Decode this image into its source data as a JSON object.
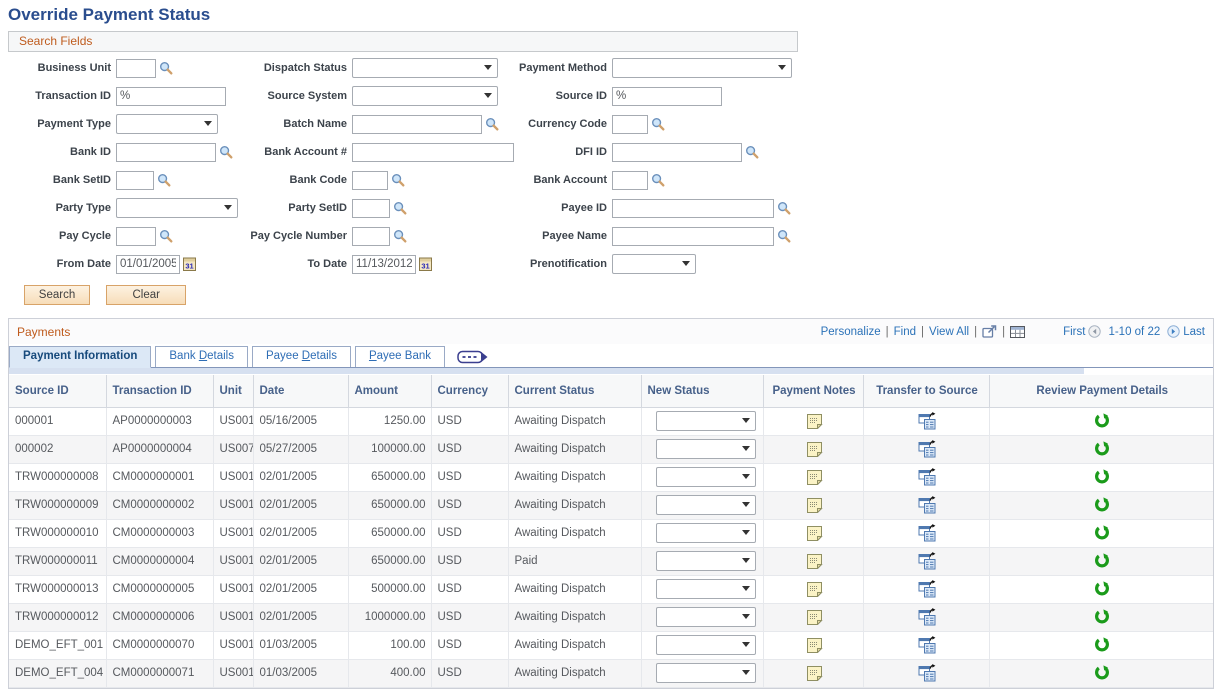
{
  "page": {
    "title": "Override Payment Status"
  },
  "search": {
    "header": "Search Fields",
    "fields": [
      {
        "label": "Business Unit",
        "value": ""
      },
      {
        "label": "Dispatch Status",
        "value": ""
      },
      {
        "label": "Payment Method",
        "value": ""
      },
      {
        "label": "Transaction ID",
        "value": "%"
      },
      {
        "label": "Source System",
        "value": ""
      },
      {
        "label": "Source ID",
        "value": "%"
      },
      {
        "label": "Payment Type",
        "value": ""
      },
      {
        "label": "Batch Name",
        "value": ""
      },
      {
        "label": "Currency Code",
        "value": ""
      },
      {
        "label": "Bank ID",
        "value": ""
      },
      {
        "label": "Bank Account #",
        "value": ""
      },
      {
        "label": "DFI ID",
        "value": ""
      },
      {
        "label": "Bank SetID",
        "value": ""
      },
      {
        "label": "Bank Code",
        "value": ""
      },
      {
        "label": "Bank Account",
        "value": ""
      },
      {
        "label": "Party Type",
        "value": ""
      },
      {
        "label": "Party SetID",
        "value": ""
      },
      {
        "label": "Payee ID",
        "value": ""
      },
      {
        "label": "Pay Cycle",
        "value": ""
      },
      {
        "label": "Pay Cycle Number",
        "value": ""
      },
      {
        "label": "Payee Name",
        "value": ""
      },
      {
        "label": "From Date",
        "value": "01/01/2005"
      },
      {
        "label": "To Date",
        "value": "11/13/2012"
      },
      {
        "label": "Prenotification",
        "value": ""
      }
    ],
    "buttons": {
      "search": "Search",
      "clear": "Clear"
    }
  },
  "payments": {
    "header": "Payments",
    "toolbar": {
      "personalize": "Personalize",
      "find": "Find",
      "view_all": "View All",
      "first": "First",
      "range": "1-10 of 22",
      "last": "Last"
    },
    "tabs": [
      {
        "label": "Payment Information",
        "active": true
      },
      {
        "label": "Bank Details",
        "accesskey": "D"
      },
      {
        "label": "Payee Details",
        "accesskey": "D"
      },
      {
        "label": "Payee Bank",
        "accesskey": "P"
      }
    ],
    "columns": [
      "Source ID",
      "Transaction ID",
      "Unit",
      "Date",
      "Amount",
      "Currency",
      "Current Status",
      "New Status",
      "Payment Notes",
      "Transfer to Source",
      "Review Payment Details"
    ],
    "rows": [
      {
        "source_id": "000001",
        "transaction_id": "AP0000000003",
        "unit": "US001",
        "date": "05/16/2005",
        "amount": "1250.00",
        "currency": "USD",
        "current_status": "Awaiting Dispatch"
      },
      {
        "source_id": "000002",
        "transaction_id": "AP0000000004",
        "unit": "US007",
        "date": "05/27/2005",
        "amount": "100000.00",
        "currency": "USD",
        "current_status": "Awaiting Dispatch"
      },
      {
        "source_id": "TRW000000008",
        "transaction_id": "CM0000000001",
        "unit": "US001",
        "date": "02/01/2005",
        "amount": "650000.00",
        "currency": "USD",
        "current_status": "Awaiting Dispatch"
      },
      {
        "source_id": "TRW000000009",
        "transaction_id": "CM0000000002",
        "unit": "US001",
        "date": "02/01/2005",
        "amount": "650000.00",
        "currency": "USD",
        "current_status": "Awaiting Dispatch"
      },
      {
        "source_id": "TRW000000010",
        "transaction_id": "CM0000000003",
        "unit": "US001",
        "date": "02/01/2005",
        "amount": "650000.00",
        "currency": "USD",
        "current_status": "Awaiting Dispatch"
      },
      {
        "source_id": "TRW000000011",
        "transaction_id": "CM0000000004",
        "unit": "US001",
        "date": "02/01/2005",
        "amount": "650000.00",
        "currency": "USD",
        "current_status": "Paid"
      },
      {
        "source_id": "TRW000000013",
        "transaction_id": "CM0000000005",
        "unit": "US001",
        "date": "02/01/2005",
        "amount": "500000.00",
        "currency": "USD",
        "current_status": "Awaiting Dispatch"
      },
      {
        "source_id": "TRW000000012",
        "transaction_id": "CM0000000006",
        "unit": "US001",
        "date": "02/01/2005",
        "amount": "1000000.00",
        "currency": "USD",
        "current_status": "Awaiting Dispatch"
      },
      {
        "source_id": "DEMO_EFT_001",
        "transaction_id": "CM0000000070",
        "unit": "US001",
        "date": "01/03/2005",
        "amount": "100.00",
        "currency": "USD",
        "current_status": "Awaiting Dispatch"
      },
      {
        "source_id": "DEMO_EFT_004",
        "transaction_id": "CM0000000071",
        "unit": "US001",
        "date": "01/03/2005",
        "amount": "400.00",
        "currency": "USD",
        "current_status": "Awaiting Dispatch"
      }
    ],
    "colors": {
      "accent_orange": "#bf5b1d",
      "link_blue": "#2b72b8",
      "refresh_green": "#1b9b1b"
    }
  }
}
